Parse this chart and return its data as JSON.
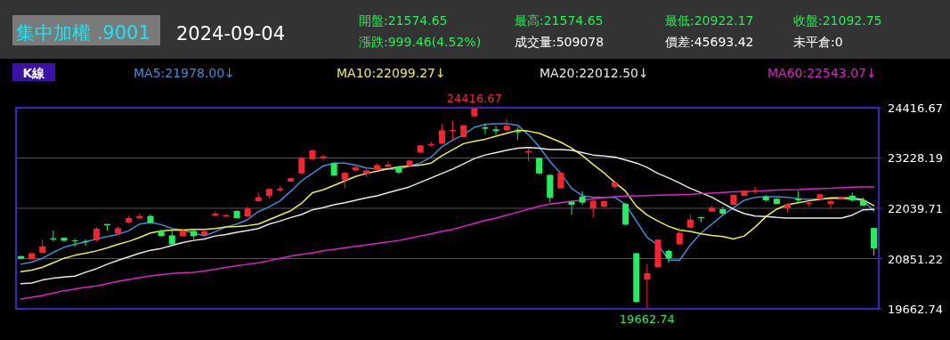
{
  "chart_data": {
    "type": "candlestick",
    "title": "集中加權 .9001",
    "subtitle": "2024-09-04",
    "categories": [
      null,
      null,
      null,
      null,
      null,
      null,
      null,
      null,
      null,
      null,
      null,
      null,
      null,
      null,
      null,
      null,
      null,
      null,
      null,
      null,
      null,
      null,
      null,
      null,
      null,
      null,
      null,
      null,
      null,
      null,
      null,
      null,
      null,
      null,
      null,
      null,
      null,
      null,
      null,
      null,
      null,
      null,
      null,
      null,
      null,
      null,
      null,
      null,
      null,
      null,
      null,
      null,
      null,
      null,
      null,
      null,
      null,
      null,
      null,
      null,
      null,
      null,
      null,
      null,
      null,
      null,
      null,
      null,
      null,
      null,
      null,
      null,
      null,
      null,
      null,
      null,
      null,
      null,
      null,
      null
    ],
    "ohlc": [
      [
        20907,
        20921,
        20836,
        20851
      ],
      [
        20836,
        20990,
        20830,
        20977
      ],
      [
        20984,
        21301,
        20980,
        21139
      ],
      [
        21329,
        21512,
        21259,
        21301
      ],
      [
        21343,
        21350,
        21245,
        21273
      ],
      [
        21280,
        21315,
        21139,
        21259
      ],
      [
        21266,
        21301,
        21153,
        21245
      ],
      [
        21287,
        21596,
        21259,
        21554
      ],
      [
        21667,
        21667,
        21512,
        21639
      ],
      [
        21442,
        21611,
        21413,
        21568
      ],
      [
        21702,
        21864,
        21681,
        21808
      ],
      [
        21808,
        21906,
        21793,
        21857
      ],
      [
        21857,
        21892,
        21681,
        21695
      ],
      [
        21512,
        21540,
        21371,
        21385
      ],
      [
        21399,
        21512,
        21174,
        21188
      ],
      [
        21385,
        21561,
        21371,
        21512
      ],
      [
        21505,
        21526,
        21315,
        21385
      ],
      [
        21406,
        21526,
        21371,
        21498
      ],
      [
        21864,
        21962,
        21850,
        21913
      ],
      [
        21850,
        21899,
        21836,
        21878
      ],
      [
        21976,
        21990,
        21800,
        21808
      ],
      [
        21850,
        22089,
        21836,
        22033
      ],
      [
        22209,
        22406,
        22195,
        22300
      ],
      [
        22335,
        22511,
        22272,
        22497
      ],
      [
        22462,
        22554,
        22441,
        22497
      ],
      [
        22673,
        22760,
        22665,
        22751
      ],
      [
        22863,
        23264,
        22849,
        23215
      ],
      [
        23201,
        23420,
        23190,
        23412
      ],
      [
        23215,
        23299,
        23173,
        23264
      ],
      [
        23109,
        23120,
        22800,
        22814
      ],
      [
        22708,
        22898,
        22511,
        22877
      ],
      [
        22933,
        23039,
        22912,
        23004
      ],
      [
        22863,
        22969,
        22779,
        22933
      ],
      [
        22948,
        23109,
        22933,
        23060
      ],
      [
        23018,
        23145,
        23004,
        23074
      ],
      [
        23018,
        23039,
        22849,
        22884
      ],
      [
        23039,
        23175,
        23030,
        23166
      ],
      [
        23356,
        23540,
        23345,
        23525
      ],
      [
        23525,
        23609,
        23496,
        23560
      ],
      [
        23567,
        24038,
        23553,
        23883
      ],
      [
        23862,
        24109,
        23651,
        23891
      ],
      [
        23722,
        24010,
        23710,
        24003
      ],
      [
        24214,
        24416.67,
        24200,
        24397
      ],
      [
        23954,
        24045,
        23792,
        23919
      ],
      [
        23905,
        23989,
        23778,
        23862
      ],
      [
        23883,
        24144,
        23862,
        23989
      ],
      [
        23869,
        23954,
        23651,
        23834
      ],
      [
        23356,
        23461,
        23159,
        23391
      ],
      [
        23229,
        23240,
        22850,
        22863
      ],
      [
        22828,
        22840,
        22173,
        22286
      ],
      [
        22511,
        22890,
        22500,
        22877
      ],
      [
        22195,
        22205,
        21892,
        22124
      ],
      [
        22314,
        22441,
        22124,
        22173
      ],
      [
        22033,
        22265,
        21822,
        22216
      ],
      [
        22075,
        22220,
        22065,
        22209
      ],
      [
        22546,
        22687,
        22511,
        22652
      ],
      [
        22145,
        22160,
        21640,
        21653
      ],
      [
        20977,
        20990,
        19810,
        19823
      ],
      [
        20351,
        20717,
        19662.74,
        20506
      ],
      [
        20646,
        21310,
        20635,
        21301
      ],
      [
        21033,
        21069,
        20752,
        20858
      ],
      [
        21188,
        21561,
        21174,
        21456
      ],
      [
        21582,
        21892,
        21561,
        21772
      ],
      [
        21829,
        21843,
        21702,
        21808
      ],
      [
        21962,
        22103,
        21948,
        22054
      ],
      [
        22019,
        22075,
        21892,
        21913
      ],
      [
        22124,
        22370,
        22110,
        22356
      ],
      [
        22335,
        22470,
        22320,
        22455
      ],
      [
        22441,
        22546,
        22371,
        22469
      ],
      [
        22314,
        22356,
        22195,
        22230
      ],
      [
        22265,
        22280,
        22135,
        22145
      ],
      [
        22040,
        22159,
        21948,
        22138
      ],
      [
        22265,
        22455,
        22173,
        22230
      ],
      [
        22145,
        22195,
        22075,
        22173
      ],
      [
        22251,
        22385,
        22240,
        22371
      ],
      [
        22145,
        22244,
        22033,
        22209
      ],
      [
        22272,
        22310,
        22260,
        22300
      ],
      [
        22335,
        22406,
        22195,
        22230
      ],
      [
        22230,
        22286,
        22089,
        22103
      ],
      [
        21574.65,
        21574.65,
        20922.17,
        21092.75
      ]
    ],
    "series": [
      {
        "name": "MA5:21978.00↓",
        "type": "line",
        "color": "#3b8fd9",
        "values": [
          20717,
          20766,
          20858,
          20998,
          21118,
          21188,
          21245,
          21315,
          21371,
          21421,
          21512,
          21667,
          21702,
          21653,
          21561,
          21526,
          21456,
          21385,
          21491,
          21596,
          21667,
          21772,
          21962,
          22075,
          22216,
          22441,
          22687,
          22863,
          23039,
          23109,
          23109,
          23060,
          22990,
          22969,
          22969,
          22962,
          23039,
          23109,
          23250,
          23496,
          23651,
          23778,
          23954,
          24024,
          24038,
          24038,
          24003,
          23778,
          23496,
          23145,
          22863,
          22511,
          22335,
          22300,
          22300,
          22300,
          22124,
          21737,
          21350,
          21174,
          20822,
          20808,
          21174,
          21456,
          21667,
          21878,
          22054,
          22230,
          22300,
          22314,
          22314,
          22300,
          22265,
          22251,
          22258,
          22265,
          22265,
          22244,
          22230,
          21978.0
        ]
      },
      {
        "name": "MA10:22099.27↓",
        "type": "line",
        "color": "#f0f03c",
        "values": [
          20541,
          20576,
          20646,
          20752,
          20858,
          20928,
          20977,
          21033,
          21104,
          21188,
          21259,
          21350,
          21456,
          21505,
          21526,
          21526,
          21540,
          21540,
          21561,
          21596,
          21611,
          21632,
          21667,
          21772,
          21878,
          21983,
          22159,
          22406,
          22476,
          22582,
          22687,
          22793,
          22863,
          22919,
          22969,
          23018,
          23039,
          23060,
          23109,
          23285,
          23426,
          23567,
          23623,
          23672,
          23743,
          23813,
          23883,
          23862,
          23813,
          23708,
          23602,
          23461,
          23285,
          23074,
          22877,
          22652,
          22441,
          22089,
          21878,
          21737,
          21611,
          21526,
          21491,
          21435,
          21399,
          21371,
          21315,
          21385,
          21596,
          21843,
          22019,
          22124,
          22173,
          22216,
          22251,
          22286,
          22286,
          22279,
          22244,
          22099.27
        ]
      },
      {
        "name": "MA20:22012.50↓",
        "type": "line",
        "color": "#e8e8e8",
        "values": [
          20259,
          20274,
          20344,
          20386,
          20414,
          20435,
          20527,
          20611,
          20717,
          20808,
          20893,
          20977,
          21048,
          21090,
          21160,
          21231,
          21280,
          21315,
          21385,
          21421,
          21470,
          21512,
          21561,
          21667,
          21737,
          21822,
          21892,
          22005,
          22054,
          22124,
          22173,
          22230,
          22286,
          22335,
          22406,
          22476,
          22546,
          22652,
          22758,
          22863,
          22969,
          23088,
          23215,
          23299,
          23356,
          23412,
          23461,
          23475,
          23461,
          23426,
          23426,
          23412,
          23356,
          23299,
          23278,
          23250,
          23180,
          23109,
          23004,
          22863,
          22758,
          22638,
          22511,
          22406,
          22300,
          22159,
          22019,
          21913,
          21857,
          21843,
          21822,
          21808,
          21808,
          21808,
          21808,
          21808,
          21808,
          21878,
          22005,
          22012.5
        ]
      },
      {
        "name": "MA60:22543.07↓",
        "type": "line",
        "color": "#e020c8",
        "values": [
          19894,
          19936,
          19978,
          20034,
          20091,
          20133,
          20175,
          20203,
          20259,
          20316,
          20358,
          20400,
          20442,
          20471,
          20499,
          20513,
          20527,
          20555,
          20597,
          20639,
          20682,
          20717,
          20752,
          20801,
          20858,
          20907,
          20949,
          20984,
          21033,
          21069,
          21104,
          21139,
          21174,
          21209,
          21245,
          21280,
          21329,
          21385,
          21435,
          21491,
          21540,
          21611,
          21681,
          21751,
          21808,
          21878,
          21948,
          22019,
          22089,
          22138,
          22173,
          22209,
          22230,
          22265,
          22293,
          22314,
          22328,
          22335,
          22342,
          22349,
          22356,
          22363,
          22371,
          22385,
          22399,
          22413,
          22427,
          22434,
          22441,
          22455,
          22469,
          22476,
          22483,
          22497,
          22504,
          22511,
          22525,
          22539,
          22546,
          22543.07
        ]
      }
    ],
    "ylim": [
      19662.74,
      24416.67
    ],
    "yticks": [
      24416.67,
      23228.19,
      22039.71,
      20851.22,
      19662.74
    ],
    "grid": "y",
    "legend": "top",
    "tick_labels": "y",
    "annotations": [
      "開盤:21574.65",
      "最高:21574.65",
      "最低:20922.17",
      "收盤:21092.75",
      "漲跌:999.46(4.52%)",
      "成交量:509078",
      "價差:45693.42",
      "未平倉:0",
      "K線",
      {
        "text": "24416.67",
        "y": 24416.67
      },
      {
        "text": "19662.74",
        "y": 19662.74
      }
    ]
  }
}
